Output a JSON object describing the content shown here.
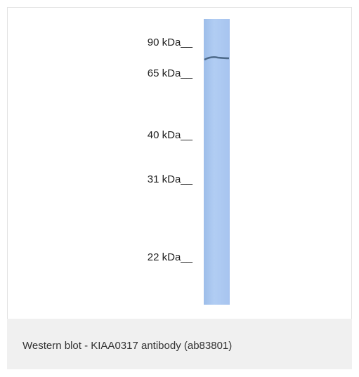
{
  "blot": {
    "markers": [
      "90 kDa__",
      "65 kDa__",
      "40 kDa__",
      "31 kDa__",
      "22 kDa__"
    ]
  },
  "caption": "Western blot - KIAA0317 antibody (ab83801)"
}
